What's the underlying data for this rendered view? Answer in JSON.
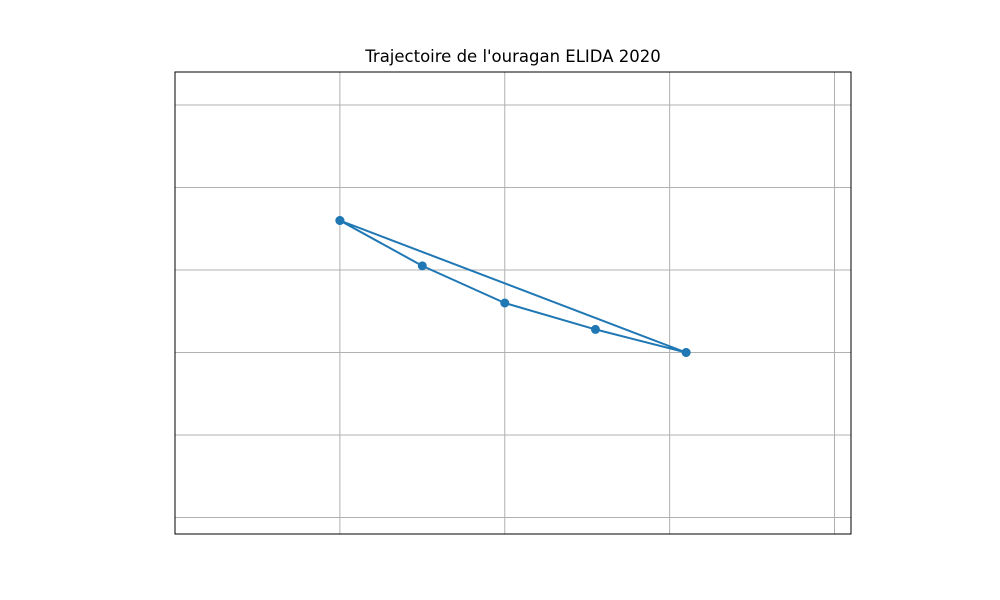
{
  "chart_data": {
    "type": "line",
    "title": "Trajectoire de l'ouragan ELIDA 2020",
    "xlabel": "",
    "ylabel": "",
    "grid": true,
    "show_tick_labels": false,
    "xlim": [
      -114.0,
      -109.9
    ],
    "ylim": [
      17.8,
      23.4
    ],
    "x_gridlines": [
      -113.0,
      -112.0,
      -111.0,
      -110.0
    ],
    "y_gridlines": [
      18.0,
      19.0,
      20.0,
      21.0,
      22.0,
      23.0
    ],
    "series": [
      {
        "color": "#1f77b4",
        "marker": "circle",
        "points": [
          {
            "x": -113.0,
            "y": 21.6
          },
          {
            "x": -112.5,
            "y": 21.05
          },
          {
            "x": -112.0,
            "y": 20.6
          },
          {
            "x": -111.45,
            "y": 20.28
          },
          {
            "x": -110.9,
            "y": 20.0
          },
          {
            "x": -113.0,
            "y": 21.6
          },
          {
            "x": -110.9,
            "y": 20.0
          }
        ]
      }
    ]
  }
}
